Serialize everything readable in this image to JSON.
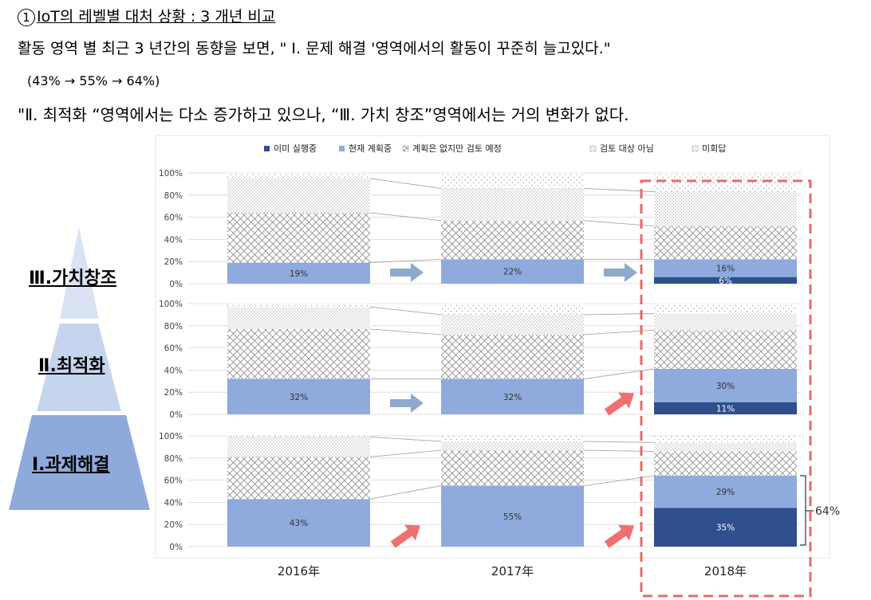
{
  "heading": {
    "number": "1",
    "text": "IoT의 레벨별 대처 상황 : 3 개년 비교"
  },
  "paragraph1": "활동 영역 별 최근 3 년간의 동향을 보면, \" Ⅰ. 문제 해결 '영역에서의 활동이 꾸준히 늘고있다.\"",
  "paragraph2": "(43% → 55%  → 64%)",
  "paragraph3": "\"Ⅱ. 최적화 “영역에서는 다소 증가하고 있으나, “Ⅲ. 가치 창조”영역에서는 거의 변화가 없다.",
  "pyramid": [
    {
      "label": "Ⅲ.가치창조",
      "color": "#dae3f3"
    },
    {
      "label": "Ⅱ.최적화",
      "color": "#c5d5ee"
    },
    {
      "label": "Ⅰ.과제해결",
      "color": "#8eaadb"
    }
  ],
  "colors": {
    "already": "#2f4f8f",
    "planning": "#8faadc",
    "pattern_stroke": "#7f7f7f",
    "arrow_blue": "#8eaacc",
    "arrow_red": "#f07070",
    "dashed_box": "#e86a6a"
  },
  "callout": "64%",
  "chart_data": {
    "type": "bar",
    "stacked": true,
    "legend_position": "top",
    "legend": [
      "이미 실행중",
      "현재 계획중",
      "계획은 없지만 검토 예정",
      "검토 대상 아님",
      "미회답"
    ],
    "categories": [
      "2016年",
      "2017年",
      "2018年"
    ],
    "y_ticks": [
      "0%",
      "20%",
      "40%",
      "60%",
      "80%",
      "100%"
    ],
    "ylim": [
      0,
      100
    ],
    "panels": [
      {
        "name": "Ⅲ.가치창조",
        "series": [
          {
            "name": "이미 실행중",
            "values": [
              0,
              0,
              6
            ],
            "labels": [
              "",
              "",
              "6%"
            ]
          },
          {
            "name": "현재 계획중",
            "values": [
              19,
              22,
              16
            ],
            "labels": [
              "19%",
              "22%",
              "16%"
            ]
          },
          {
            "name": "계획은 없지만 검토 예정",
            "values": [
              45,
              35,
              30
            ],
            "labels": [
              "",
              "",
              ""
            ]
          },
          {
            "name": "검토 대상 아님",
            "values": [
              31,
              29,
              31
            ],
            "labels": [
              "",
              "",
              ""
            ]
          },
          {
            "name": "미회답",
            "values": [
              5,
              14,
              17
            ],
            "labels": [
              "",
              "",
              ""
            ]
          }
        ],
        "arrows": [
          "blue",
          "blue"
        ]
      },
      {
        "name": "Ⅱ.최적화",
        "series": [
          {
            "name": "이미 실행중",
            "values": [
              0,
              0,
              11
            ],
            "labels": [
              "",
              "",
              "11%"
            ]
          },
          {
            "name": "현재 계획중",
            "values": [
              32,
              32,
              30
            ],
            "labels": [
              "32%",
              "32%",
              "30%"
            ]
          },
          {
            "name": "계획은 없지만 검토 예정",
            "values": [
              45,
              40,
              35
            ],
            "labels": [
              "",
              "",
              ""
            ]
          },
          {
            "name": "검토 대상 아님",
            "values": [
              20,
              18,
              15
            ],
            "labels": [
              "",
              "",
              ""
            ]
          },
          {
            "name": "미회답",
            "values": [
              3,
              10,
              9
            ],
            "labels": [
              "",
              "",
              ""
            ]
          }
        ],
        "arrows": [
          "blue",
          "red"
        ]
      },
      {
        "name": "Ⅰ.과제해결",
        "series": [
          {
            "name": "이미 실행중",
            "values": [
              0,
              0,
              35
            ],
            "labels": [
              "",
              "",
              "35%"
            ]
          },
          {
            "name": "현재 계획중",
            "values": [
              43,
              55,
              29
            ],
            "labels": [
              "43%",
              "55%",
              "29%"
            ]
          },
          {
            "name": "계획은 없지만 검토 예정",
            "values": [
              38,
              32,
              22
            ],
            "labels": [
              "",
              "",
              ""
            ]
          },
          {
            "name": "검토 대상 아님",
            "values": [
              18,
              8,
              8
            ],
            "labels": [
              "",
              "",
              ""
            ]
          },
          {
            "name": "미회답",
            "values": [
              1,
              5,
              6
            ],
            "labels": [
              "",
              "",
              ""
            ]
          }
        ],
        "arrows": [
          "red",
          "red"
        ]
      }
    ]
  }
}
